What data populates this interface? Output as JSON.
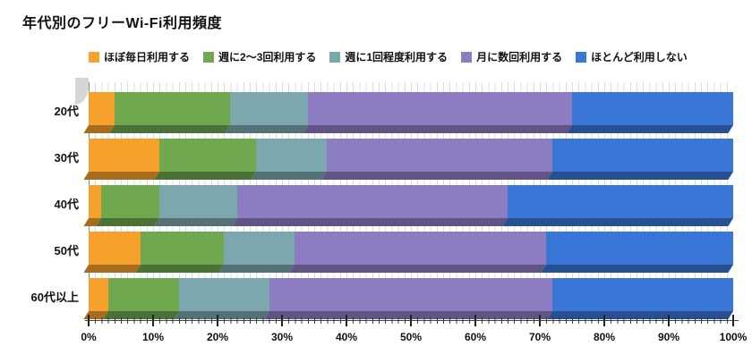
{
  "chart_data": {
    "type": "bar",
    "orientation": "horizontal",
    "stacked": true,
    "title": "年代別のフリーWi-Fi利用頻度",
    "categories": [
      "20代",
      "30代",
      "40代",
      "50代",
      "60代以上"
    ],
    "series": [
      {
        "name": "ほぼ毎日利用する",
        "color": "#F5A12B",
        "values": [
          4,
          11,
          2,
          8,
          3
        ]
      },
      {
        "name": "週に2〜3回利用する",
        "color": "#6FA84F",
        "values": [
          18,
          15,
          9,
          13,
          11
        ]
      },
      {
        "name": "週に1回程度利用する",
        "color": "#7CA7AE",
        "values": [
          12,
          11,
          12,
          11,
          14
        ]
      },
      {
        "name": "月に数回利用する",
        "color": "#8E7CC3",
        "values": [
          41,
          35,
          42,
          39,
          44
        ]
      },
      {
        "name": "ほとんど利用しない",
        "color": "#3A76D6",
        "values": [
          25,
          28,
          35,
          29,
          28
        ]
      }
    ],
    "xlim": [
      0,
      100
    ],
    "x_ticks": [
      "0%",
      "10%",
      "20%",
      "30%",
      "40%",
      "50%",
      "60%",
      "70%",
      "80%",
      "90%",
      "100%"
    ],
    "legend_position": "top",
    "grid": "minor-vertical-1pct"
  }
}
